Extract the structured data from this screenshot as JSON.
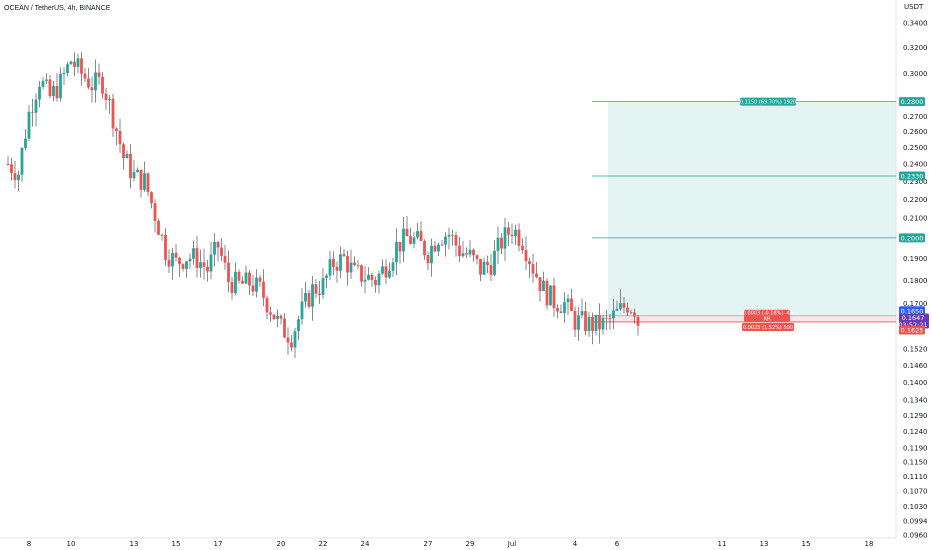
{
  "header": {
    "symbol_line": "OCEAN / TetherUS, 4h, BINANCE",
    "currency": "USDT"
  },
  "colors": {
    "up": "#26a69a",
    "down": "#ef5350",
    "wick": "#363a45",
    "target_fill": "#d9f0ec",
    "target_line": "#26a69a",
    "stop_line": "#ef5350",
    "last_price": "#2962ff",
    "countdown": "#673ab7"
  },
  "chart_data": {
    "type": "candlestick",
    "title": "OCEAN / TetherUS, 4h, BINANCE",
    "yscale": "log",
    "ylim": [
      0.096,
      0.36
    ],
    "y_ticks": [
      "0.3400",
      "0.3200",
      "0.3000",
      "0.2800",
      "0.2700",
      "0.2600",
      "0.2500",
      "0.2400",
      "0.2300",
      "0.2200",
      "0.2100",
      "0.1900",
      "0.1800",
      "0.1700",
      "0.1650",
      "0.1625",
      "0.1520",
      "0.1460",
      "0.1400",
      "0.1340",
      "0.1290",
      "0.1240",
      "0.1190",
      "0.1150",
      "0.1110",
      "0.1070",
      "0.1030",
      "0.0994",
      "0.0960"
    ],
    "x_ticks": [
      {
        "label": "8",
        "day": 8
      },
      {
        "label": "10",
        "day": 10
      },
      {
        "label": "13",
        "day": 13
      },
      {
        "label": "15",
        "day": 15
      },
      {
        "label": "17",
        "day": 17
      },
      {
        "label": "20",
        "day": 20
      },
      {
        "label": "22",
        "day": 22
      },
      {
        "label": "24",
        "day": 24
      },
      {
        "label": "27",
        "day": 27
      },
      {
        "label": "29",
        "day": 29
      },
      {
        "label": "Jul",
        "day": 31
      },
      {
        "label": "4",
        "day": 34
      },
      {
        "label": "6",
        "day": 36
      },
      {
        "label": "11",
        "day": 41
      },
      {
        "label": "13",
        "day": 43
      },
      {
        "label": "15",
        "day": 45
      },
      {
        "label": "18",
        "day": 48
      }
    ],
    "x_start_day": 7,
    "candles_per_day": 6,
    "path": [
      [
        0,
        0.24
      ],
      [
        3,
        0.235
      ],
      [
        6,
        0.272
      ],
      [
        9,
        0.296
      ],
      [
        12,
        0.283
      ],
      [
        15,
        0.293
      ],
      [
        18,
        0.31
      ],
      [
        21,
        0.3
      ],
      [
        24,
        0.292
      ],
      [
        27,
        0.294
      ],
      [
        30,
        0.27
      ],
      [
        33,
        0.244
      ],
      [
        36,
        0.233
      ],
      [
        39,
        0.23
      ],
      [
        42,
        0.212
      ],
      [
        45,
        0.194
      ],
      [
        48,
        0.188
      ],
      [
        51,
        0.191
      ],
      [
        54,
        0.19
      ],
      [
        57,
        0.185
      ],
      [
        60,
        0.196
      ],
      [
        63,
        0.18
      ],
      [
        66,
        0.178
      ],
      [
        69,
        0.179
      ],
      [
        72,
        0.176
      ],
      [
        75,
        0.168
      ],
      [
        78,
        0.16
      ],
      [
        81,
        0.157
      ],
      [
        84,
        0.167
      ],
      [
        87,
        0.176
      ],
      [
        90,
        0.178
      ],
      [
        93,
        0.188
      ],
      [
        96,
        0.19
      ],
      [
        99,
        0.183
      ],
      [
        102,
        0.182
      ],
      [
        105,
        0.18
      ],
      [
        108,
        0.187
      ],
      [
        111,
        0.196
      ],
      [
        114,
        0.2
      ],
      [
        117,
        0.198
      ],
      [
        120,
        0.193
      ],
      [
        123,
        0.201
      ],
      [
        126,
        0.202
      ],
      [
        129,
        0.194
      ],
      [
        132,
        0.191
      ],
      [
        135,
        0.185
      ],
      [
        138,
        0.188
      ],
      [
        141,
        0.198
      ],
      [
        144,
        0.205
      ],
      [
        147,
        0.199
      ],
      [
        150,
        0.186
      ],
      [
        153,
        0.176
      ],
      [
        156,
        0.171
      ],
      [
        159,
        0.17
      ],
      [
        162,
        0.163
      ],
      [
        165,
        0.162
      ],
      [
        168,
        0.161
      ],
      [
        171,
        0.162
      ],
      [
        174,
        0.166
      ],
      [
        177,
        0.17
      ],
      [
        179,
        0.168
      ],
      [
        180,
        0.161
      ]
    ],
    "last_price": "0.1647",
    "countdown": "03:52:21",
    "position": {
      "type": "long",
      "entry": "0.1650",
      "stop": "0.1625",
      "targets": [
        "0.2000",
        "0.2330",
        "0.2800"
      ],
      "target_label": "0.1150 (69.70%) 1920",
      "pnl_label": "-0.0003 (-0.18%) -46",
      "stop_label": "0.0025 (1.52%) 500",
      "stop_mid_label": "RR"
    }
  }
}
